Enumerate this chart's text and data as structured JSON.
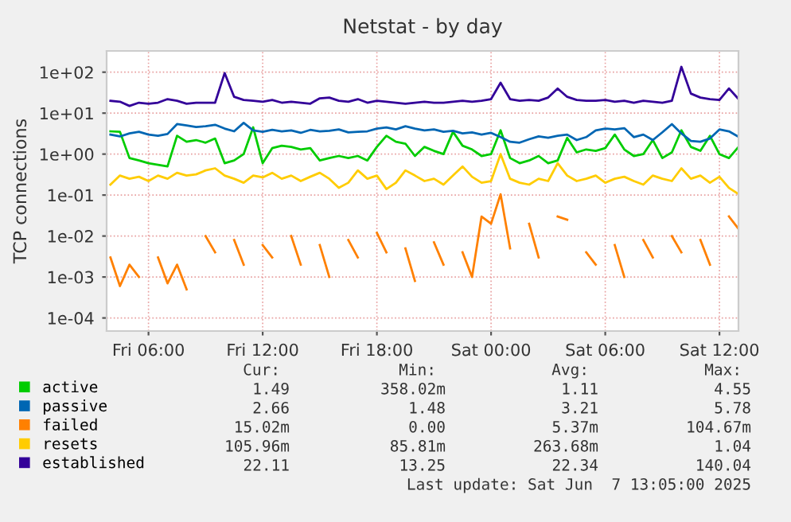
{
  "chart_data": {
    "type": "line",
    "title": "Netstat - by day",
    "ylabel": "TCP connections",
    "x": [
      "2025-06-06T04:00",
      "2025-06-06T04:30",
      "2025-06-06T05:00",
      "2025-06-06T05:30",
      "2025-06-06T06:00",
      "2025-06-06T06:30",
      "2025-06-06T07:00",
      "2025-06-06T07:30",
      "2025-06-06T08:00",
      "2025-06-06T08:30",
      "2025-06-06T09:00",
      "2025-06-06T09:30",
      "2025-06-06T10:00",
      "2025-06-06T10:30",
      "2025-06-06T11:00",
      "2025-06-06T11:30",
      "2025-06-06T12:00",
      "2025-06-06T12:30",
      "2025-06-06T13:00",
      "2025-06-06T13:30",
      "2025-06-06T14:00",
      "2025-06-06T14:30",
      "2025-06-06T15:00",
      "2025-06-06T15:30",
      "2025-06-06T16:00",
      "2025-06-06T16:30",
      "2025-06-06T17:00",
      "2025-06-06T17:30",
      "2025-06-06T18:00",
      "2025-06-06T18:30",
      "2025-06-06T19:00",
      "2025-06-06T19:30",
      "2025-06-06T20:00",
      "2025-06-06T20:30",
      "2025-06-06T21:00",
      "2025-06-06T21:30",
      "2025-06-06T22:00",
      "2025-06-06T22:30",
      "2025-06-06T23:00",
      "2025-06-06T23:30",
      "2025-06-07T00:00",
      "2025-06-07T00:30",
      "2025-06-07T01:00",
      "2025-06-07T01:30",
      "2025-06-07T02:00",
      "2025-06-07T02:30",
      "2025-06-07T03:00",
      "2025-06-07T03:30",
      "2025-06-07T04:00",
      "2025-06-07T04:30",
      "2025-06-07T05:00",
      "2025-06-07T05:30",
      "2025-06-07T06:00",
      "2025-06-07T06:30",
      "2025-06-07T07:00",
      "2025-06-07T07:30",
      "2025-06-07T08:00",
      "2025-06-07T08:30",
      "2025-06-07T09:00",
      "2025-06-07T09:30",
      "2025-06-07T10:00",
      "2025-06-07T10:30",
      "2025-06-07T11:00",
      "2025-06-07T11:30",
      "2025-06-07T12:00",
      "2025-06-07T12:30",
      "2025-06-07T13:00"
    ],
    "series": [
      {
        "name": "active",
        "color": "#00cc00",
        "values": [
          3.6,
          3.5,
          0.8,
          0.7,
          0.6,
          0.55,
          0.5,
          2.8,
          2.0,
          2.2,
          1.9,
          2.4,
          0.6,
          0.7,
          1.0,
          4.5,
          0.6,
          1.4,
          1.6,
          1.5,
          1.3,
          1.4,
          0.7,
          0.8,
          0.9,
          0.8,
          0.9,
          0.7,
          1.5,
          2.8,
          2.0,
          1.8,
          0.9,
          1.5,
          1.2,
          1.0,
          3.5,
          1.6,
          1.3,
          0.9,
          1.0,
          3.8,
          0.8,
          0.6,
          0.7,
          0.9,
          0.6,
          0.7,
          2.5,
          1.1,
          1.3,
          1.2,
          1.4,
          3.0,
          1.3,
          0.9,
          1.0,
          2.2,
          0.8,
          1.1,
          3.8,
          1.5,
          1.2,
          2.8,
          1.0,
          0.8,
          1.49
        ]
      },
      {
        "name": "passive",
        "color": "#0066b3",
        "values": [
          3.0,
          2.7,
          3.2,
          3.5,
          3.0,
          2.8,
          3.1,
          5.4,
          5.0,
          4.6,
          4.8,
          5.2,
          4.2,
          3.6,
          5.8,
          3.8,
          3.5,
          3.9,
          3.6,
          3.8,
          3.3,
          3.9,
          3.6,
          3.7,
          4.0,
          3.4,
          3.5,
          3.6,
          4.2,
          4.5,
          4.0,
          4.8,
          4.2,
          3.8,
          4.0,
          3.5,
          3.7,
          3.2,
          3.4,
          3.0,
          3.3,
          2.6,
          2.0,
          1.9,
          2.3,
          2.7,
          2.5,
          2.8,
          3.0,
          2.2,
          2.6,
          3.8,
          4.2,
          4.0,
          4.3,
          2.6,
          3.0,
          2.2,
          3.4,
          5.4,
          3.2,
          2.1,
          2.0,
          2.4,
          4.0,
          3.6,
          2.66
        ]
      },
      {
        "name": "failed",
        "color": "#ff8000",
        "values": [
          0.003,
          0.0006,
          0.002,
          0.001,
          null,
          0.003,
          0.0007,
          0.002,
          0.0005,
          null,
          0.01,
          0.004,
          null,
          0.008,
          0.002,
          null,
          0.006,
          0.003,
          null,
          0.01,
          0.002,
          null,
          0.006,
          0.001,
          null,
          0.008,
          0.003,
          null,
          0.012,
          0.004,
          null,
          0.005,
          0.0008,
          null,
          0.007,
          0.002,
          null,
          0.004,
          0.001,
          0.03,
          0.02,
          0.1047,
          0.005,
          null,
          0.02,
          0.003,
          null,
          0.03,
          0.025,
          null,
          0.004,
          0.002,
          null,
          0.006,
          0.001,
          null,
          0.008,
          0.003,
          null,
          0.01,
          0.004,
          null,
          0.008,
          0.002,
          null,
          0.03,
          0.015
        ]
      },
      {
        "name": "resets",
        "color": "#ffcc00",
        "values": [
          0.18,
          0.3,
          0.25,
          0.28,
          0.22,
          0.3,
          0.25,
          0.35,
          0.3,
          0.32,
          0.4,
          0.45,
          0.3,
          0.25,
          0.2,
          0.3,
          0.27,
          0.35,
          0.25,
          0.3,
          0.22,
          0.28,
          0.35,
          0.25,
          0.15,
          0.2,
          0.4,
          0.25,
          0.3,
          0.14,
          0.2,
          0.4,
          0.3,
          0.22,
          0.25,
          0.18,
          0.3,
          0.5,
          0.28,
          0.2,
          0.22,
          1.0,
          0.25,
          0.2,
          0.18,
          0.25,
          0.22,
          0.6,
          0.3,
          0.22,
          0.25,
          0.3,
          0.2,
          0.25,
          0.28,
          0.22,
          0.18,
          0.3,
          0.25,
          0.22,
          0.45,
          0.25,
          0.3,
          0.2,
          0.28,
          0.15,
          0.106
        ]
      },
      {
        "name": "established",
        "color": "#330099",
        "values": [
          20,
          19,
          15,
          18,
          17,
          18,
          22,
          20,
          17,
          18,
          18,
          18,
          95,
          25,
          21,
          20,
          19,
          21,
          18,
          19,
          18,
          17,
          23,
          24,
          20,
          19,
          22,
          18,
          20,
          19,
          18,
          17,
          18,
          19,
          18,
          18,
          19,
          20,
          19,
          20,
          22,
          55,
          22,
          20,
          21,
          20,
          24,
          40,
          25,
          21,
          20,
          20,
          21,
          19,
          20,
          18,
          20,
          19,
          18,
          20,
          135,
          30,
          24,
          22,
          21,
          40,
          22.11
        ]
      }
    ],
    "log": true,
    "xlim": [
      "2025-06-06T03:48",
      "2025-06-07T13:00"
    ],
    "xticks": [
      {
        "value": "2025-06-06T06:00",
        "label": "Fri 06:00"
      },
      {
        "value": "2025-06-06T12:00",
        "label": "Fri 12:00"
      },
      {
        "value": "2025-06-06T18:00",
        "label": "Fri 18:00"
      },
      {
        "value": "2025-06-07T00:00",
        "label": "Sat 00:00"
      },
      {
        "value": "2025-06-07T06:00",
        "label": "Sat 06:00"
      },
      {
        "value": "2025-06-07T12:00",
        "label": "Sat 12:00"
      }
    ],
    "ylim": [
      4.8e-05,
      330
    ],
    "yticks": [
      {
        "value": 0.0001,
        "label": "1e-04"
      },
      {
        "value": 0.001,
        "label": "1e-03"
      },
      {
        "value": 0.01,
        "label": "1e-02"
      },
      {
        "value": 0.1,
        "label": "1e-01"
      },
      {
        "value": 1,
        "label": "1e+00"
      },
      {
        "value": 10,
        "label": "1e+01"
      },
      {
        "value": 100,
        "label": "1e+02"
      }
    ],
    "grid": true,
    "legend": "bottom",
    "marker": "none",
    "line_style": "solid",
    "annotations": [
      "Cur:",
      "Min:",
      "Avg:",
      "Max:",
      "1.49",
      "358.02m",
      "1.11",
      "4.55",
      "2.66",
      "1.48",
      "3.21",
      "5.78",
      "15.02m",
      "0.00",
      "5.37m",
      "104.67m",
      "105.96m",
      "85.81m",
      "263.68m",
      "1.04",
      "22.11",
      "13.25",
      "22.34",
      "140.04",
      "Last update: Sat Jun  7 13:05:00 2025"
    ]
  }
}
